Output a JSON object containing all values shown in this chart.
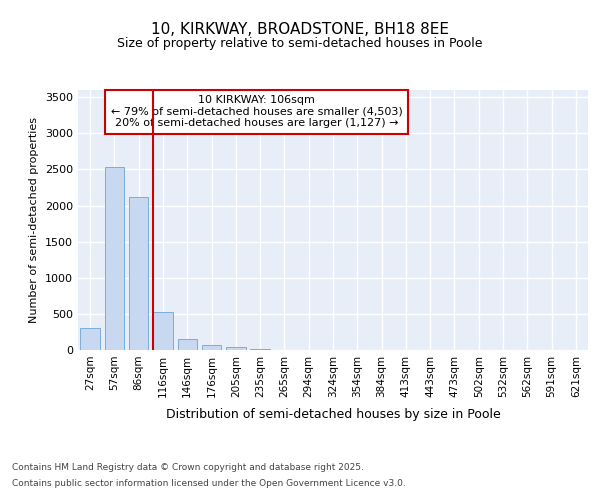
{
  "title": "10, KIRKWAY, BROADSTONE, BH18 8EE",
  "subtitle": "Size of property relative to semi-detached houses in Poole",
  "xlabel": "Distribution of semi-detached houses by size in Poole",
  "ylabel": "Number of semi-detached properties",
  "categories": [
    "27sqm",
    "57sqm",
    "86sqm",
    "116sqm",
    "146sqm",
    "176sqm",
    "205sqm",
    "235sqm",
    "265sqm",
    "294sqm",
    "324sqm",
    "354sqm",
    "384sqm",
    "413sqm",
    "443sqm",
    "473sqm",
    "502sqm",
    "532sqm",
    "562sqm",
    "591sqm",
    "621sqm"
  ],
  "values": [
    305,
    2530,
    2120,
    520,
    150,
    72,
    38,
    8,
    0,
    0,
    0,
    0,
    0,
    0,
    0,
    0,
    0,
    0,
    0,
    0,
    0
  ],
  "bar_color": "#c8d8f0",
  "bar_edge_color": "#7aaddc",
  "ylim": [
    0,
    3600
  ],
  "yticks": [
    0,
    500,
    1000,
    1500,
    2000,
    2500,
    3000,
    3500
  ],
  "property_label": "10 KIRKWAY: 106sqm",
  "smaller_pct": 79,
  "smaller_count": "4,503",
  "larger_pct": 20,
  "larger_count": "1,127",
  "vline_color": "#cc0000",
  "annotation_box_color": "#cc0000",
  "background_color": "#e8eef8",
  "grid_color": "#ffffff",
  "footer_line1": "Contains HM Land Registry data © Crown copyright and database right 2025.",
  "footer_line2": "Contains public sector information licensed under the Open Government Licence v3.0."
}
